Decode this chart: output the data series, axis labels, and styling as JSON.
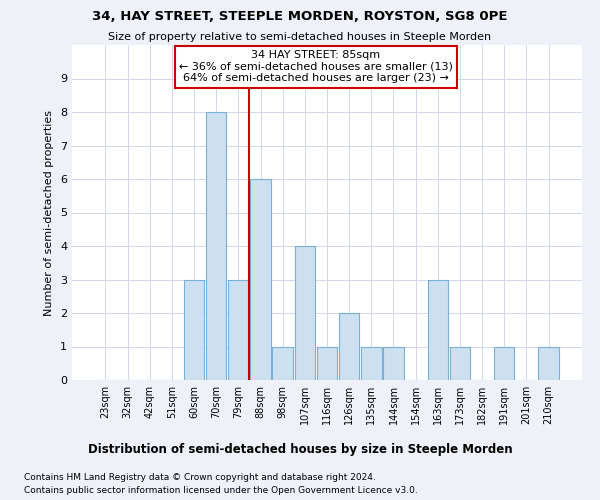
{
  "title": "34, HAY STREET, STEEPLE MORDEN, ROYSTON, SG8 0PE",
  "subtitle": "Size of property relative to semi-detached houses in Steeple Morden",
  "xlabel": "Distribution of semi-detached houses by size in Steeple Morden",
  "ylabel": "Number of semi-detached properties",
  "categories": [
    "23sqm",
    "32sqm",
    "42sqm",
    "51sqm",
    "60sqm",
    "70sqm",
    "79sqm",
    "88sqm",
    "98sqm",
    "107sqm",
    "116sqm",
    "126sqm",
    "135sqm",
    "144sqm",
    "154sqm",
    "163sqm",
    "173sqm",
    "182sqm",
    "191sqm",
    "201sqm",
    "210sqm"
  ],
  "values": [
    0,
    0,
    0,
    0,
    3,
    8,
    3,
    6,
    1,
    4,
    1,
    2,
    1,
    1,
    0,
    3,
    1,
    0,
    1,
    0,
    1
  ],
  "bar_color": "#cce0f0",
  "bar_edge_color": "#7bafd4",
  "annotation_title": "34 HAY STREET: 85sqm",
  "annotation_line1": "← 36% of semi-detached houses are smaller (13)",
  "annotation_line2": "64% of semi-detached houses are larger (23) →",
  "annotation_box_color": "#ffffff",
  "annotation_box_edge": "#cc0000",
  "vline_color": "#cc0000",
  "ylim": [
    0,
    10
  ],
  "yticks": [
    0,
    1,
    2,
    3,
    4,
    5,
    6,
    7,
    8,
    9,
    10
  ],
  "footnote1": "Contains HM Land Registry data © Crown copyright and database right 2024.",
  "footnote2": "Contains public sector information licensed under the Open Government Licence v3.0.",
  "bg_color": "#eef2f8",
  "plot_bg_color": "#ffffff",
  "grid_color": "#d0d8e8"
}
